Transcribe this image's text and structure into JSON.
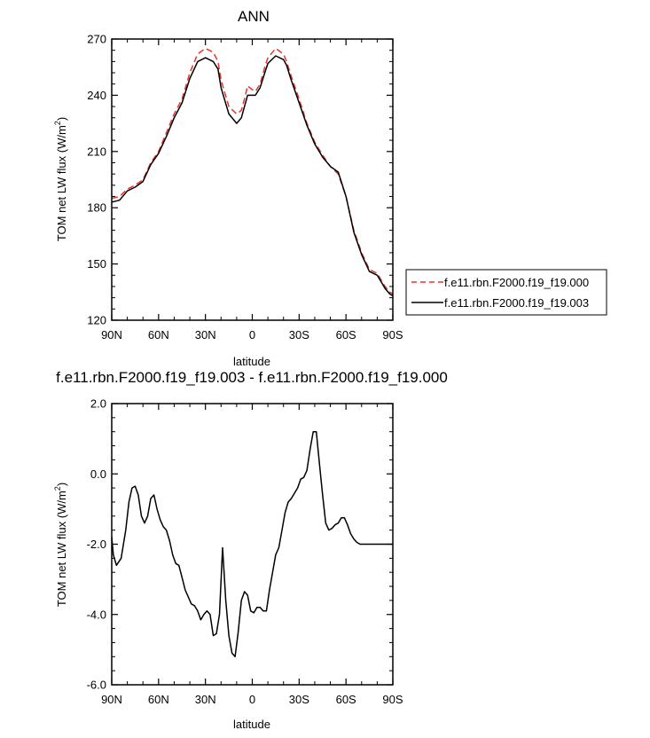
{
  "chart_data": [
    {
      "type": "line",
      "title": "ANN",
      "xlabel": "latitude",
      "ylabel": "TOM net LW flux (W/m",
      "ylabel_sup": "2",
      "ylabel_close": ")",
      "xlim": [
        90,
        -90
      ],
      "ylim": [
        120,
        270
      ],
      "xticks": [
        90,
        60,
        30,
        0,
        -30,
        -60,
        -90
      ],
      "xtick_labels": [
        "90N",
        "60N",
        "30N",
        "0",
        "30S",
        "60S",
        "90S"
      ],
      "yticks": [
        120,
        150,
        180,
        210,
        240,
        270
      ],
      "ytick_labels": [
        "120",
        "150",
        "180",
        "210",
        "240",
        "270"
      ],
      "grid": false,
      "legend": "right, outside plot area",
      "series": [
        {
          "name": "f.e11.rbn.F2000.f19_f19.000",
          "color": "#e8332a",
          "dash": "dashed",
          "x": [
            90,
            85,
            80,
            75,
            70,
            65,
            60,
            55,
            50,
            45,
            40,
            35,
            30,
            25,
            22,
            20,
            15,
            10,
            7,
            5,
            3,
            0,
            -2,
            -5,
            -8,
            -10,
            -15,
            -20,
            -22,
            -25,
            -30,
            -35,
            -40,
            -45,
            -50,
            -55,
            -60,
            -65,
            -70,
            -75,
            -80,
            -85,
            -88,
            -90
          ],
          "y": [
            185,
            186,
            190,
            192,
            195,
            204,
            210,
            220,
            230,
            238,
            252,
            262,
            265,
            263,
            258,
            248,
            234,
            230,
            232,
            238,
            245,
            243,
            242,
            246,
            255,
            260,
            265,
            262,
            258,
            250,
            238,
            225,
            215,
            208,
            202,
            198,
            186,
            168,
            156,
            147,
            145,
            138,
            135,
            134
          ]
        },
        {
          "name": "f.e11.rbn.F2000.f19_f19.003",
          "color": "#000000",
          "dash": "solid",
          "x": [
            90,
            85,
            80,
            75,
            70,
            65,
            60,
            55,
            50,
            45,
            40,
            35,
            30,
            25,
            22,
            20,
            15,
            10,
            7,
            5,
            3,
            0,
            -2,
            -5,
            -8,
            -10,
            -15,
            -20,
            -22,
            -25,
            -30,
            -35,
            -40,
            -45,
            -50,
            -55,
            -60,
            -65,
            -70,
            -75,
            -80,
            -85,
            -88,
            -90
          ],
          "y": [
            183,
            184,
            189,
            191,
            194,
            203,
            209,
            218,
            228,
            236,
            249,
            258,
            260,
            258,
            254,
            244,
            230,
            225,
            228,
            234,
            240,
            240,
            240,
            244,
            252,
            257,
            261,
            259,
            256,
            248,
            236,
            224,
            214,
            207,
            202,
            199,
            186,
            167,
            155,
            146,
            144,
            137,
            134,
            133
          ]
        }
      ]
    },
    {
      "type": "line",
      "title": "f.e11.rbn.F2000.f19_f19.003 - f.e11.rbn.F2000.f19_f19.000",
      "xlabel": "latitude",
      "ylabel": "TOM net LW flux (W/m",
      "ylabel_sup": "2",
      "ylabel_close": ")",
      "xlim": [
        90,
        -90
      ],
      "ylim": [
        -6.0,
        2.0
      ],
      "xticks": [
        90,
        60,
        30,
        0,
        -30,
        -60,
        -90
      ],
      "xtick_labels": [
        "90N",
        "60N",
        "30N",
        "0",
        "30S",
        "60S",
        "90S"
      ],
      "yticks": [
        -6.0,
        -4.0,
        -2.0,
        0.0,
        2.0
      ],
      "ytick_labels": [
        "-6.0",
        "-4.0",
        "-2.0",
        "0.0",
        "2.0"
      ],
      "grid": false,
      "series": [
        {
          "color": "#000000",
          "dash": "solid",
          "x": [
            90,
            89,
            87,
            84,
            81,
            79,
            77,
            75,
            73,
            71,
            69,
            67,
            65,
            63,
            61,
            59,
            57,
            55,
            53,
            51,
            49,
            47,
            45,
            43,
            41,
            39,
            37,
            35,
            33,
            31,
            29,
            27,
            25,
            23,
            21,
            19,
            17,
            15,
            13,
            11,
            9,
            7,
            5,
            3,
            1,
            -1,
            -3,
            -5,
            -7,
            -9,
            -11,
            -13,
            -15,
            -17,
            -19,
            -21,
            -23,
            -25,
            -27,
            -29,
            -31,
            -33,
            -35,
            -37,
            -39,
            -41,
            -43,
            -45,
            -47,
            -49,
            -51,
            -53,
            -55,
            -57,
            -59,
            -61,
            -63,
            -65,
            -67,
            -69,
            -71,
            -73,
            -75,
            -77,
            -79,
            -81,
            -83,
            -85,
            -87,
            -89,
            -90
          ],
          "y": [
            -1.8,
            -2.3,
            -2.6,
            -2.4,
            -1.6,
            -0.8,
            -0.4,
            -0.35,
            -0.6,
            -1.2,
            -1.4,
            -1.2,
            -0.7,
            -0.6,
            -1.0,
            -1.3,
            -1.5,
            -1.6,
            -1.9,
            -2.3,
            -2.55,
            -2.6,
            -2.95,
            -3.3,
            -3.5,
            -3.7,
            -3.75,
            -3.9,
            -4.15,
            -4.0,
            -3.9,
            -4.0,
            -4.6,
            -4.55,
            -4.0,
            -2.1,
            -3.6,
            -4.6,
            -5.1,
            -5.2,
            -4.5,
            -3.6,
            -3.35,
            -3.45,
            -3.9,
            -3.95,
            -3.8,
            -3.8,
            -3.9,
            -3.9,
            -3.3,
            -2.8,
            -2.3,
            -2.1,
            -1.6,
            -1.1,
            -0.8,
            -0.7,
            -0.55,
            -0.4,
            -0.15,
            -0.1,
            0.1,
            0.7,
            1.2,
            1.2,
            0.3,
            -0.6,
            -1.4,
            -1.6,
            -1.55,
            -1.45,
            -1.4,
            -1.25,
            -1.25,
            -1.45,
            -1.7,
            -1.85,
            -1.95,
            -2.0,
            -2.0,
            -2.0,
            -2.0,
            -2.0,
            -2.0,
            -2.0,
            -2.0,
            -2.0,
            -2.0,
            -2.0,
            -2.0
          ]
        }
      ]
    }
  ]
}
